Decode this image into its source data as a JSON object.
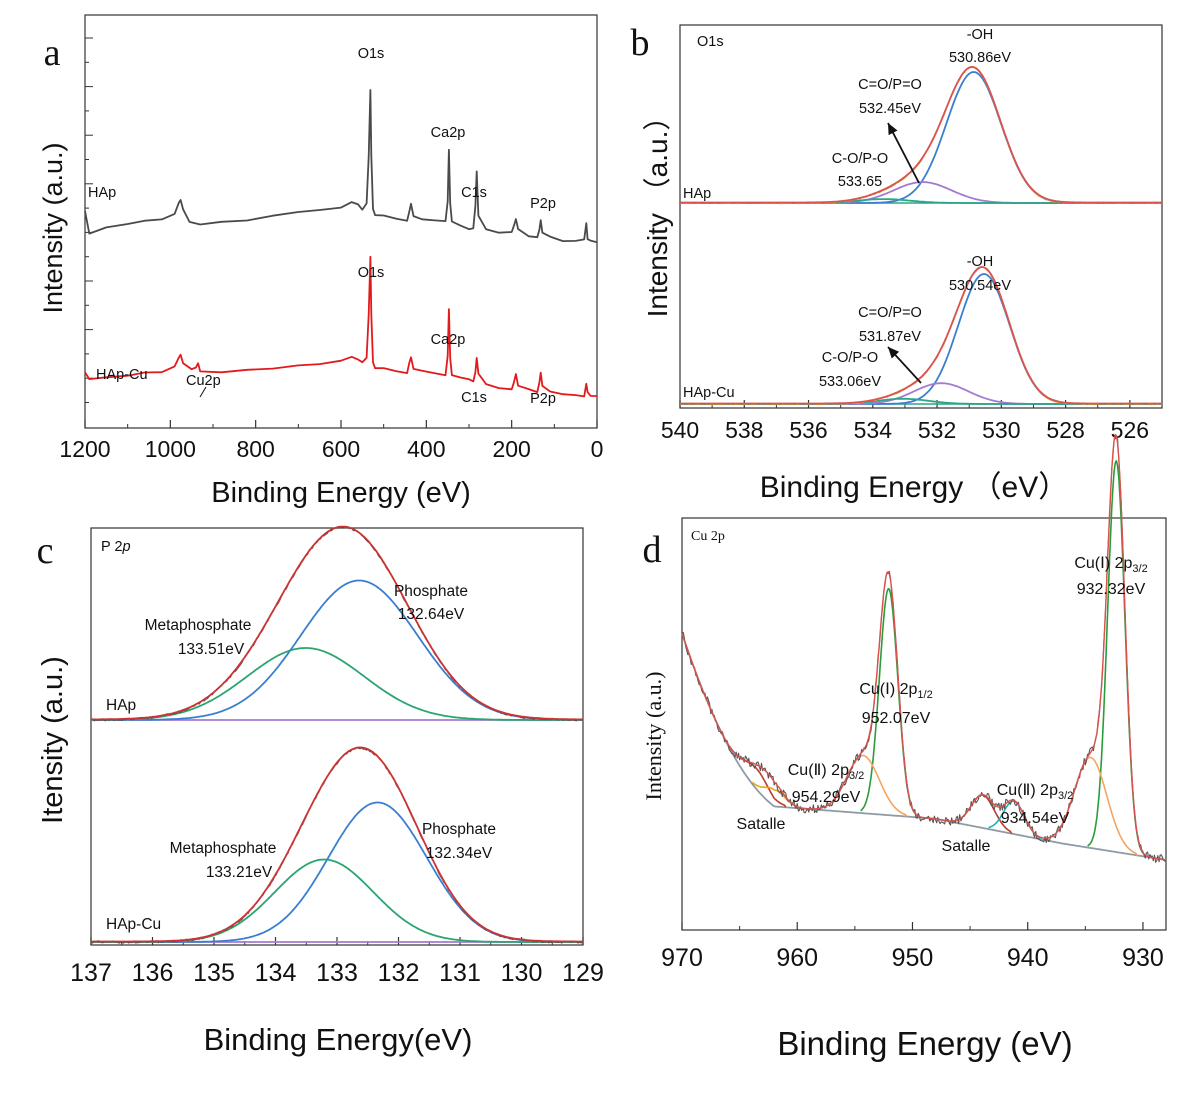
{
  "chart_data": [
    {
      "id": "a",
      "type": "line",
      "panel_letter": "a",
      "xlabel": "Binding Energy (eV)",
      "ylabel": "Intensity (a.u.)",
      "xlim": [
        1200,
        0
      ],
      "x_ticks": [
        "1200",
        "1000",
        "800",
        "600",
        "400",
        "200",
        "0"
      ],
      "grid": false,
      "series": [
        {
          "name": "HAp",
          "color": "#4a4a4a",
          "x": [
            1200,
            1190,
            1150,
            1100,
            1060,
            1020,
            990,
            980,
            976,
            970,
            955,
            930,
            880,
            820,
            760,
            700,
            650,
            600,
            575,
            560,
            550,
            540,
            535,
            531,
            529,
            525,
            520,
            500,
            470,
            445,
            440,
            436,
            430,
            410,
            380,
            355,
            350,
            347,
            344,
            340,
            320,
            300,
            290,
            285,
            282,
            278,
            260,
            230,
            200,
            195,
            190,
            185,
            160,
            140,
            135,
            132,
            128,
            110,
            80,
            50,
            30,
            25,
            22,
            15,
            0
          ],
          "y": [
            98,
            112,
            109,
            106,
            104,
            103,
            99,
            92,
            90,
            96,
            104,
            106,
            105,
            103,
            100,
            98,
            96,
            95,
            91,
            93,
            96,
            92,
            60,
            15,
            60,
            96,
            100,
            101,
            103,
            104,
            97,
            92,
            101,
            103,
            104,
            104,
            90,
            55,
            92,
            104,
            107,
            109,
            109,
            94,
            70,
            100,
            110,
            112,
            112,
            108,
            103,
            110,
            114,
            115,
            110,
            103,
            112,
            115,
            118,
            118,
            117,
            106,
            116,
            118,
            119
          ]
        },
        {
          "name": "HAp-Cu",
          "color": "#e31a1c",
          "x": [
            1200,
            1190,
            1150,
            1100,
            1060,
            1020,
            990,
            980,
            976,
            970,
            950,
            940,
            935,
            930,
            880,
            820,
            760,
            700,
            650,
            600,
            575,
            560,
            550,
            540,
            535,
            531,
            529,
            525,
            520,
            500,
            470,
            445,
            440,
            436,
            430,
            410,
            380,
            355,
            350,
            347,
            344,
            340,
            320,
            300,
            290,
            285,
            282,
            278,
            260,
            230,
            200,
            195,
            190,
            185,
            160,
            140,
            135,
            132,
            128,
            110,
            80,
            50,
            30,
            25,
            22,
            15,
            0
          ],
          "y": [
            97,
            101,
            100,
            99,
            97,
            96,
            92,
            86,
            84,
            90,
            95,
            93,
            90,
            96,
            96,
            95,
            94,
            92,
            90,
            88,
            85,
            87,
            90,
            86,
            55,
            15,
            55,
            90,
            93,
            94,
            96,
            97,
            90,
            86,
            94,
            96,
            97,
            98,
            85,
            52,
            86,
            98,
            100,
            102,
            103,
            96,
            86,
            98,
            105,
            107,
            108,
            104,
            98,
            106,
            109,
            110,
            104,
            97,
            106,
            110,
            112,
            113,
            113,
            104,
            111,
            113,
            114
          ]
        }
      ],
      "labels": [
        "HAp",
        "HAp-Cu",
        "O1s",
        "Ca2p",
        "C1s",
        "P2p",
        "O1s",
        "Ca2p",
        "C1s",
        "P2p",
        "Cu2p"
      ]
    },
    {
      "id": "b",
      "type": "line",
      "panel_letter": "b",
      "title": "O1s",
      "xlabel": "Binding Energy （eV）",
      "ylabel": "Intensity （a.u.）",
      "xlim": [
        540,
        525
      ],
      "x_ticks": [
        "540",
        "538",
        "536",
        "534",
        "532",
        "530",
        "528",
        "526"
      ],
      "grid": false,
      "series": [
        {
          "name": "HAp",
          "color": "#d1a531",
          "peaks": [
            [
              530.86,
              1.0,
              0.85
            ],
            [
              532.45,
              0.16,
              0.9
            ],
            [
              533.65,
              0.03,
              0.8
            ]
          ]
        },
        {
          "name": "HAp-Cu",
          "color": "#d1a531",
          "peaks": [
            [
              530.54,
              1.0,
              0.8
            ],
            [
              531.87,
              0.16,
              0.85
            ],
            [
              533.06,
              0.04,
              0.8
            ]
          ]
        }
      ],
      "labels": [
        "HAp",
        "HAp-Cu",
        "-OH",
        "530.86eV",
        "C=O/P=O",
        "532.45eV",
        "C-O/P-O",
        "533.65",
        "-OH",
        "530.54eV",
        "C=O/P=O",
        "531.87eV",
        "C-O/P-O",
        "533.06eV"
      ]
    },
    {
      "id": "c",
      "type": "line",
      "panel_letter": "c",
      "title_prefix": "P 2",
      "title_italic": "p",
      "xlabel": "Binding Energy(eV)",
      "ylabel": "Itensity (a.u.)",
      "xlim": [
        137,
        129
      ],
      "x_ticks": [
        "137",
        "136",
        "135",
        "134",
        "133",
        "132",
        "131",
        "130",
        "129"
      ],
      "grid": false,
      "series": [
        {
          "name": "HAp",
          "color": "#cc3333",
          "peaks": [
            [
              132.64,
              0.93,
              0.95
            ],
            [
              133.51,
              0.48,
              0.95
            ]
          ]
        },
        {
          "name": "HAp-Cu",
          "color": "#cc3333",
          "peaks": [
            [
              132.34,
              0.93,
              0.8
            ],
            [
              133.21,
              0.55,
              0.8
            ]
          ]
        }
      ],
      "labels": [
        "HAp",
        "HAp-Cu",
        "Phosphate",
        "132.64eV",
        "Metaphosphate",
        "133.51eV",
        "Phosphate",
        "132.34eV",
        "Metaphosphate",
        "133.21eV"
      ]
    },
    {
      "id": "d",
      "type": "line",
      "panel_letter": "d",
      "title": "Cu 2p",
      "xlabel": "Binding Energy (eV)",
      "ylabel": "Intensity (a.u.)",
      "xlim": [
        970,
        928
      ],
      "x_ticks": [
        "970",
        "960",
        "950",
        "940",
        "930"
      ],
      "grid": false,
      "peaks": [
        {
          "center": 932.32,
          "height": 0.95,
          "width": 0.75,
          "color": "#2a9d3a"
        },
        {
          "center": 934.54,
          "height": 0.22,
          "width": 1.4,
          "color": "#f4a460"
        },
        {
          "center": 943.9,
          "height": 0.08,
          "width": 1.0,
          "color": "#c0392b"
        },
        {
          "center": 941.2,
          "height": 0.08,
          "width": 0.9,
          "color": "#17b6b6"
        },
        {
          "center": 952.07,
          "height": 0.55,
          "width": 0.8,
          "color": "#2a9d3a"
        },
        {
          "center": 954.29,
          "height": 0.14,
          "width": 1.4,
          "color": "#f4a460"
        },
        {
          "center": 963.5,
          "height": 0.05,
          "width": 1.1,
          "color": "#c0392b"
        },
        {
          "center": 962.0,
          "height": 0.04,
          "width": 0.9,
          "color": "#e6a817"
        }
      ],
      "labels": [
        "Satalle",
        "Satalle"
      ]
    }
  ],
  "annotations": {
    "d_cu1_2p32": {
      "prefix": "Cu(Ⅰ) 2p",
      "sub": "3/2",
      "value": "932.32eV"
    },
    "d_cu1_2p12": {
      "prefix": "Cu(Ⅰ) 2p",
      "sub": "1/2",
      "value": "952.07eV"
    },
    "d_cu2_2p32_a": {
      "prefix": "Cu(Ⅱ) 2p",
      "sub": "3/2",
      "value": "954.29eV"
    },
    "d_cu2_2p32_b": {
      "prefix": "Cu(Ⅱ) 2p",
      "sub": "3/2",
      "value": "934.54eV"
    }
  }
}
